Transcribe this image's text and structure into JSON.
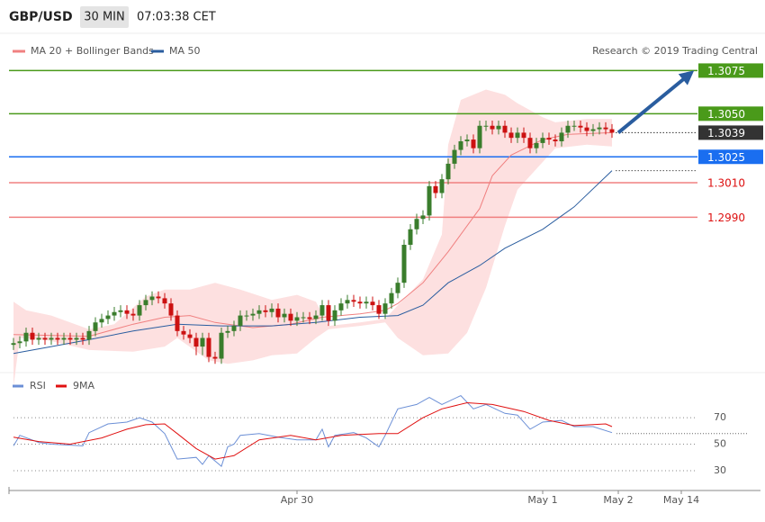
{
  "header": {
    "symbol": "GBP/USD",
    "timeframe": "30 MIN",
    "time": "07:03:38 CET"
  },
  "chart_data": [
    {
      "type": "candlestick",
      "credit": "Research © 2019 Trading Central",
      "xlim": [
        -1,
        118
      ],
      "ylim": [
        1.2902,
        1.3082
      ],
      "up_color": "#3a7d2c",
      "down_color": "#cc1111",
      "open": [
        1.2916,
        1.2917,
        1.2918,
        1.2923,
        1.2919,
        1.292,
        1.2919,
        1.292,
        1.2919,
        1.292,
        1.2919,
        1.292,
        1.2919,
        1.2924,
        1.2929,
        1.2931,
        1.2933,
        1.2935,
        1.2936,
        1.2934,
        1.2933,
        1.2939,
        1.2942,
        1.2944,
        1.2943,
        1.294,
        1.2933,
        1.2924,
        1.2922,
        1.292,
        1.2915,
        1.292,
        1.2909,
        1.2908,
        1.2923,
        1.2924,
        1.2927,
        1.2933,
        1.2933,
        1.2934,
        1.2936,
        1.2935,
        1.2937,
        1.2932,
        1.2934,
        1.293,
        1.2932,
        1.2932,
        1.2931,
        1.2933,
        1.2939,
        1.293,
        1.2936,
        1.294,
        1.2942,
        1.2941,
        1.294,
        1.2941,
        1.2939,
        1.2934,
        1.294,
        1.2946,
        1.2952,
        1.2974,
        1.2983,
        1.2989,
        1.2991,
        1.3008,
        1.3004,
        1.3012,
        1.3021,
        1.3029,
        1.3034,
        1.3035,
        1.303,
        1.3043,
        1.3043,
        1.3041,
        1.3043,
        1.3039,
        1.3036,
        1.3039,
        1.3036,
        1.303,
        1.3033,
        1.3036,
        1.3035,
        1.3034,
        1.3039,
        1.3043,
        1.3043,
        1.3042,
        1.304,
        1.3041,
        1.3042,
        1.3041
      ],
      "high": [
        1.292,
        1.2921,
        1.2926,
        1.2926,
        1.2923,
        1.2923,
        1.2923,
        1.2923,
        1.2923,
        1.2923,
        1.2923,
        1.2923,
        1.2927,
        1.2932,
        1.2934,
        1.2936,
        1.2938,
        1.2939,
        1.2939,
        1.2937,
        1.2942,
        1.2945,
        1.2947,
        1.2947,
        1.2946,
        1.2943,
        1.2936,
        1.2927,
        1.2925,
        1.2923,
        1.2923,
        1.2923,
        1.2912,
        1.2926,
        1.2927,
        1.293,
        1.2936,
        1.2936,
        1.2937,
        1.2939,
        1.2939,
        1.294,
        1.294,
        1.2937,
        1.2937,
        1.2935,
        1.2935,
        1.2935,
        1.2936,
        1.2942,
        1.2942,
        1.2939,
        1.2943,
        1.2945,
        1.2945,
        1.2944,
        1.2944,
        1.2944,
        1.2942,
        1.2943,
        1.2949,
        1.2955,
        1.2977,
        1.2986,
        1.2992,
        1.2994,
        1.3011,
        1.3011,
        1.3015,
        1.3024,
        1.3032,
        1.3037,
        1.3038,
        1.3038,
        1.3046,
        1.3046,
        1.3046,
        1.3046,
        1.3046,
        1.3042,
        1.3042,
        1.3042,
        1.3039,
        1.3036,
        1.3039,
        1.3039,
        1.3038,
        1.3042,
        1.3046,
        1.3046,
        1.3046,
        1.3045,
        1.3044,
        1.3045,
        1.3045,
        1.3044
      ],
      "low": [
        1.2913,
        1.2914,
        1.2915,
        1.2916,
        1.2916,
        1.2916,
        1.2916,
        1.2916,
        1.2916,
        1.2916,
        1.2916,
        1.2916,
        1.2916,
        1.2921,
        1.2926,
        1.2928,
        1.293,
        1.2932,
        1.2931,
        1.293,
        1.293,
        1.2936,
        1.2939,
        1.294,
        1.2937,
        1.293,
        1.2921,
        1.2919,
        1.2917,
        1.291,
        1.291,
        1.2906,
        1.2905,
        1.2905,
        1.292,
        1.2921,
        1.2924,
        1.293,
        1.293,
        1.2931,
        1.2932,
        1.2932,
        1.2929,
        1.2929,
        1.2927,
        1.2927,
        1.2929,
        1.2928,
        1.2928,
        1.293,
        1.2927,
        1.2927,
        1.2933,
        1.2937,
        1.2938,
        1.2937,
        1.2937,
        1.2936,
        1.2931,
        1.2931,
        1.2937,
        1.2943,
        1.2949,
        1.2971,
        1.298,
        1.2986,
        1.2988,
        1.3001,
        1.3001,
        1.3009,
        1.3018,
        1.3026,
        1.3031,
        1.3027,
        1.3027,
        1.304,
        1.3038,
        1.3038,
        1.3036,
        1.3033,
        1.3033,
        1.3033,
        1.3027,
        1.3027,
        1.303,
        1.3032,
        1.3031,
        1.3031,
        1.3036,
        1.304,
        1.3039,
        1.3037,
        1.3037,
        1.3038,
        1.3038,
        1.3036
      ],
      "close": [
        1.2917,
        1.2918,
        1.2923,
        1.2919,
        1.292,
        1.2919,
        1.292,
        1.2919,
        1.292,
        1.2919,
        1.292,
        1.2919,
        1.2924,
        1.2929,
        1.2931,
        1.2933,
        1.2935,
        1.2936,
        1.2934,
        1.2933,
        1.2939,
        1.2942,
        1.2944,
        1.2943,
        1.294,
        1.2933,
        1.2924,
        1.2922,
        1.292,
        1.2915,
        1.292,
        1.2909,
        1.2908,
        1.2923,
        1.2924,
        1.2927,
        1.2933,
        1.2933,
        1.2934,
        1.2936,
        1.2935,
        1.2937,
        1.2932,
        1.2934,
        1.293,
        1.2932,
        1.2932,
        1.2931,
        1.2933,
        1.2939,
        1.293,
        1.2936,
        1.294,
        1.2942,
        1.2941,
        1.294,
        1.2941,
        1.2939,
        1.2934,
        1.294,
        1.2946,
        1.2952,
        1.2974,
        1.2983,
        1.2989,
        1.2991,
        1.3008,
        1.3004,
        1.3012,
        1.3021,
        1.3029,
        1.3034,
        1.3035,
        1.303,
        1.3043,
        1.3043,
        1.3041,
        1.3043,
        1.3039,
        1.3036,
        1.3039,
        1.3036,
        1.303,
        1.3033,
        1.3036,
        1.3035,
        1.3034,
        1.3039,
        1.3043,
        1.3043,
        1.3042,
        1.304,
        1.3041,
        1.3042,
        1.3041,
        1.3039
      ],
      "series": [
        {
          "name": "MA 20 + Bollinger Bands",
          "color": "#f08080",
          "band_color": "#fde0e0",
          "x": [
            0,
            12,
            19,
            24,
            28,
            32,
            38,
            44,
            49,
            55,
            59,
            61,
            65,
            69,
            74,
            76,
            79,
            84,
            88,
            95
          ],
          "values": [
            1.2922,
            1.2921,
            1.2928,
            1.2932,
            1.2933,
            1.2929,
            1.2926,
            1.2928,
            1.2932,
            1.2934,
            1.2936,
            1.294,
            1.2952,
            1.297,
            1.2995,
            1.3014,
            1.3026,
            1.3035,
            1.3038,
            1.3039
          ],
          "upper": {
            "x": [
              0,
              2,
              6,
              12,
              16,
              21,
              24,
              28,
              32,
              36,
              41,
              45,
              48,
              50,
              55,
              59,
              61,
              65,
              68,
              69,
              71,
              75,
              78,
              80,
              84,
              86,
              91,
              95
            ],
            "values": [
              1.2941,
              1.2936,
              1.2933,
              1.2925,
              1.2928,
              1.2944,
              1.2948,
              1.2948,
              1.2952,
              1.2948,
              1.2942,
              1.2945,
              1.2941,
              1.2927,
              1.2929,
              1.2931,
              1.2939,
              1.2954,
              1.298,
              1.3032,
              1.3058,
              1.3064,
              1.3061,
              1.3056,
              1.3048,
              1.3045,
              1.3047,
              1.3047
            ]
          },
          "lower": {
            "x": [
              0,
              1,
              5,
              12,
              19,
              24,
              26,
              31,
              34,
              38,
              41,
              45,
              48,
              50,
              55,
              59,
              61,
              65,
              69,
              72,
              75,
              78,
              80,
              84,
              86,
              91,
              95
            ],
            "values": [
              1.2892,
              1.292,
              1.2919,
              1.2913,
              1.2912,
              1.2915,
              1.292,
              1.2907,
              1.2905,
              1.2907,
              1.291,
              1.2911,
              1.292,
              1.2925,
              1.2927,
              1.2929,
              1.292,
              1.291,
              1.2911,
              1.2923,
              1.2949,
              1.2985,
              1.3006,
              1.3022,
              1.303,
              1.3032,
              1.3031
            ]
          }
        },
        {
          "name": "MA 50",
          "color": "#2a5d9f",
          "x": [
            0,
            6,
            12,
            19,
            26,
            33,
            41,
            48,
            55,
            61,
            65,
            69,
            74,
            78,
            84,
            89,
            95
          ],
          "values": [
            1.2911,
            1.2915,
            1.2919,
            1.2924,
            1.2928,
            1.2927,
            1.2927,
            1.2929,
            1.2932,
            1.2933,
            1.2939,
            1.2952,
            1.2962,
            1.2972,
            1.2983,
            1.2996,
            1.3017
          ]
        }
      ],
      "levels": [
        {
          "value": 1.3075,
          "label": "1.3075",
          "color": "#4a9a1a",
          "style": "box",
          "line": "solid"
        },
        {
          "value": 1.305,
          "label": "1.3050",
          "color": "#4a9a1a",
          "style": "box",
          "line": "solid"
        },
        {
          "value": 1.3039,
          "label": "1.3039",
          "color": "#333333",
          "style": "box",
          "line": "dotted"
        },
        {
          "value": 1.3025,
          "label": "1.3025",
          "color": "#1a6ef0",
          "style": "box",
          "line": "solid"
        },
        {
          "value": 1.301,
          "label": "1.3010",
          "color": "#f08080",
          "style": "text",
          "line": "solid"
        },
        {
          "value": 1.299,
          "label": "1.2990",
          "color": "#f08080",
          "style": "text",
          "line": "solid"
        }
      ],
      "forecast": {
        "x": [
          96,
          108
        ],
        "values": [
          1.3039,
          1.3075
        ],
        "color": "#2a5d9f"
      }
    },
    {
      "type": "line",
      "xlim": [
        -1,
        118
      ],
      "ylim": [
        15,
        100
      ],
      "yticks": [
        30,
        50,
        70
      ],
      "grid": true,
      "level": 58,
      "xticks": [
        {
          "value": 45,
          "label": "Apr 30"
        },
        {
          "value": 84,
          "label": "May 1"
        },
        {
          "value": 96,
          "label": "May 2"
        },
        {
          "value": 106,
          "label": "May 14"
        }
      ],
      "series": [
        {
          "name": "RSI",
          "color": "#6b8fd6",
          "x": [
            0,
            1,
            4,
            6,
            11,
            12,
            15,
            18,
            20,
            22,
            24,
            26,
            29,
            30,
            31,
            33,
            34,
            35,
            36,
            39,
            42,
            45,
            48,
            49,
            50,
            51,
            54,
            56,
            58,
            59,
            61,
            64,
            66,
            68,
            71,
            73,
            75,
            78,
            80,
            82,
            84,
            87,
            89,
            92,
            95
          ],
          "values": [
            48.7,
            56.7,
            51.3,
            50,
            48.7,
            58.7,
            65.3,
            66.7,
            70,
            66.7,
            58,
            38.7,
            40,
            34.7,
            41.3,
            33.3,
            48,
            50,
            56.7,
            58,
            55.3,
            53.3,
            53.3,
            61.3,
            48,
            56.7,
            58.7,
            54.7,
            48,
            56.7,
            76.7,
            80,
            85.3,
            80,
            86.7,
            76.7,
            80,
            73.3,
            72,
            61.3,
            66.7,
            68,
            63.3,
            63.3,
            58.7
          ]
        },
        {
          "name": "9MA",
          "color": "#e01010",
          "x": [
            0,
            4,
            9,
            14,
            18,
            21,
            24,
            26,
            29,
            32,
            35,
            39,
            44,
            48,
            52,
            58,
            61,
            65,
            68,
            72,
            76,
            81,
            85,
            89,
            94,
            95
          ],
          "values": [
            55.3,
            52,
            50,
            54.7,
            61.3,
            64.7,
            65.3,
            58,
            46.7,
            38.7,
            41.3,
            53.3,
            56.7,
            53.3,
            56.7,
            58,
            58,
            70,
            76.7,
            81.3,
            80,
            74.7,
            68,
            64,
            65.3,
            63.3
          ]
        }
      ]
    }
  ]
}
